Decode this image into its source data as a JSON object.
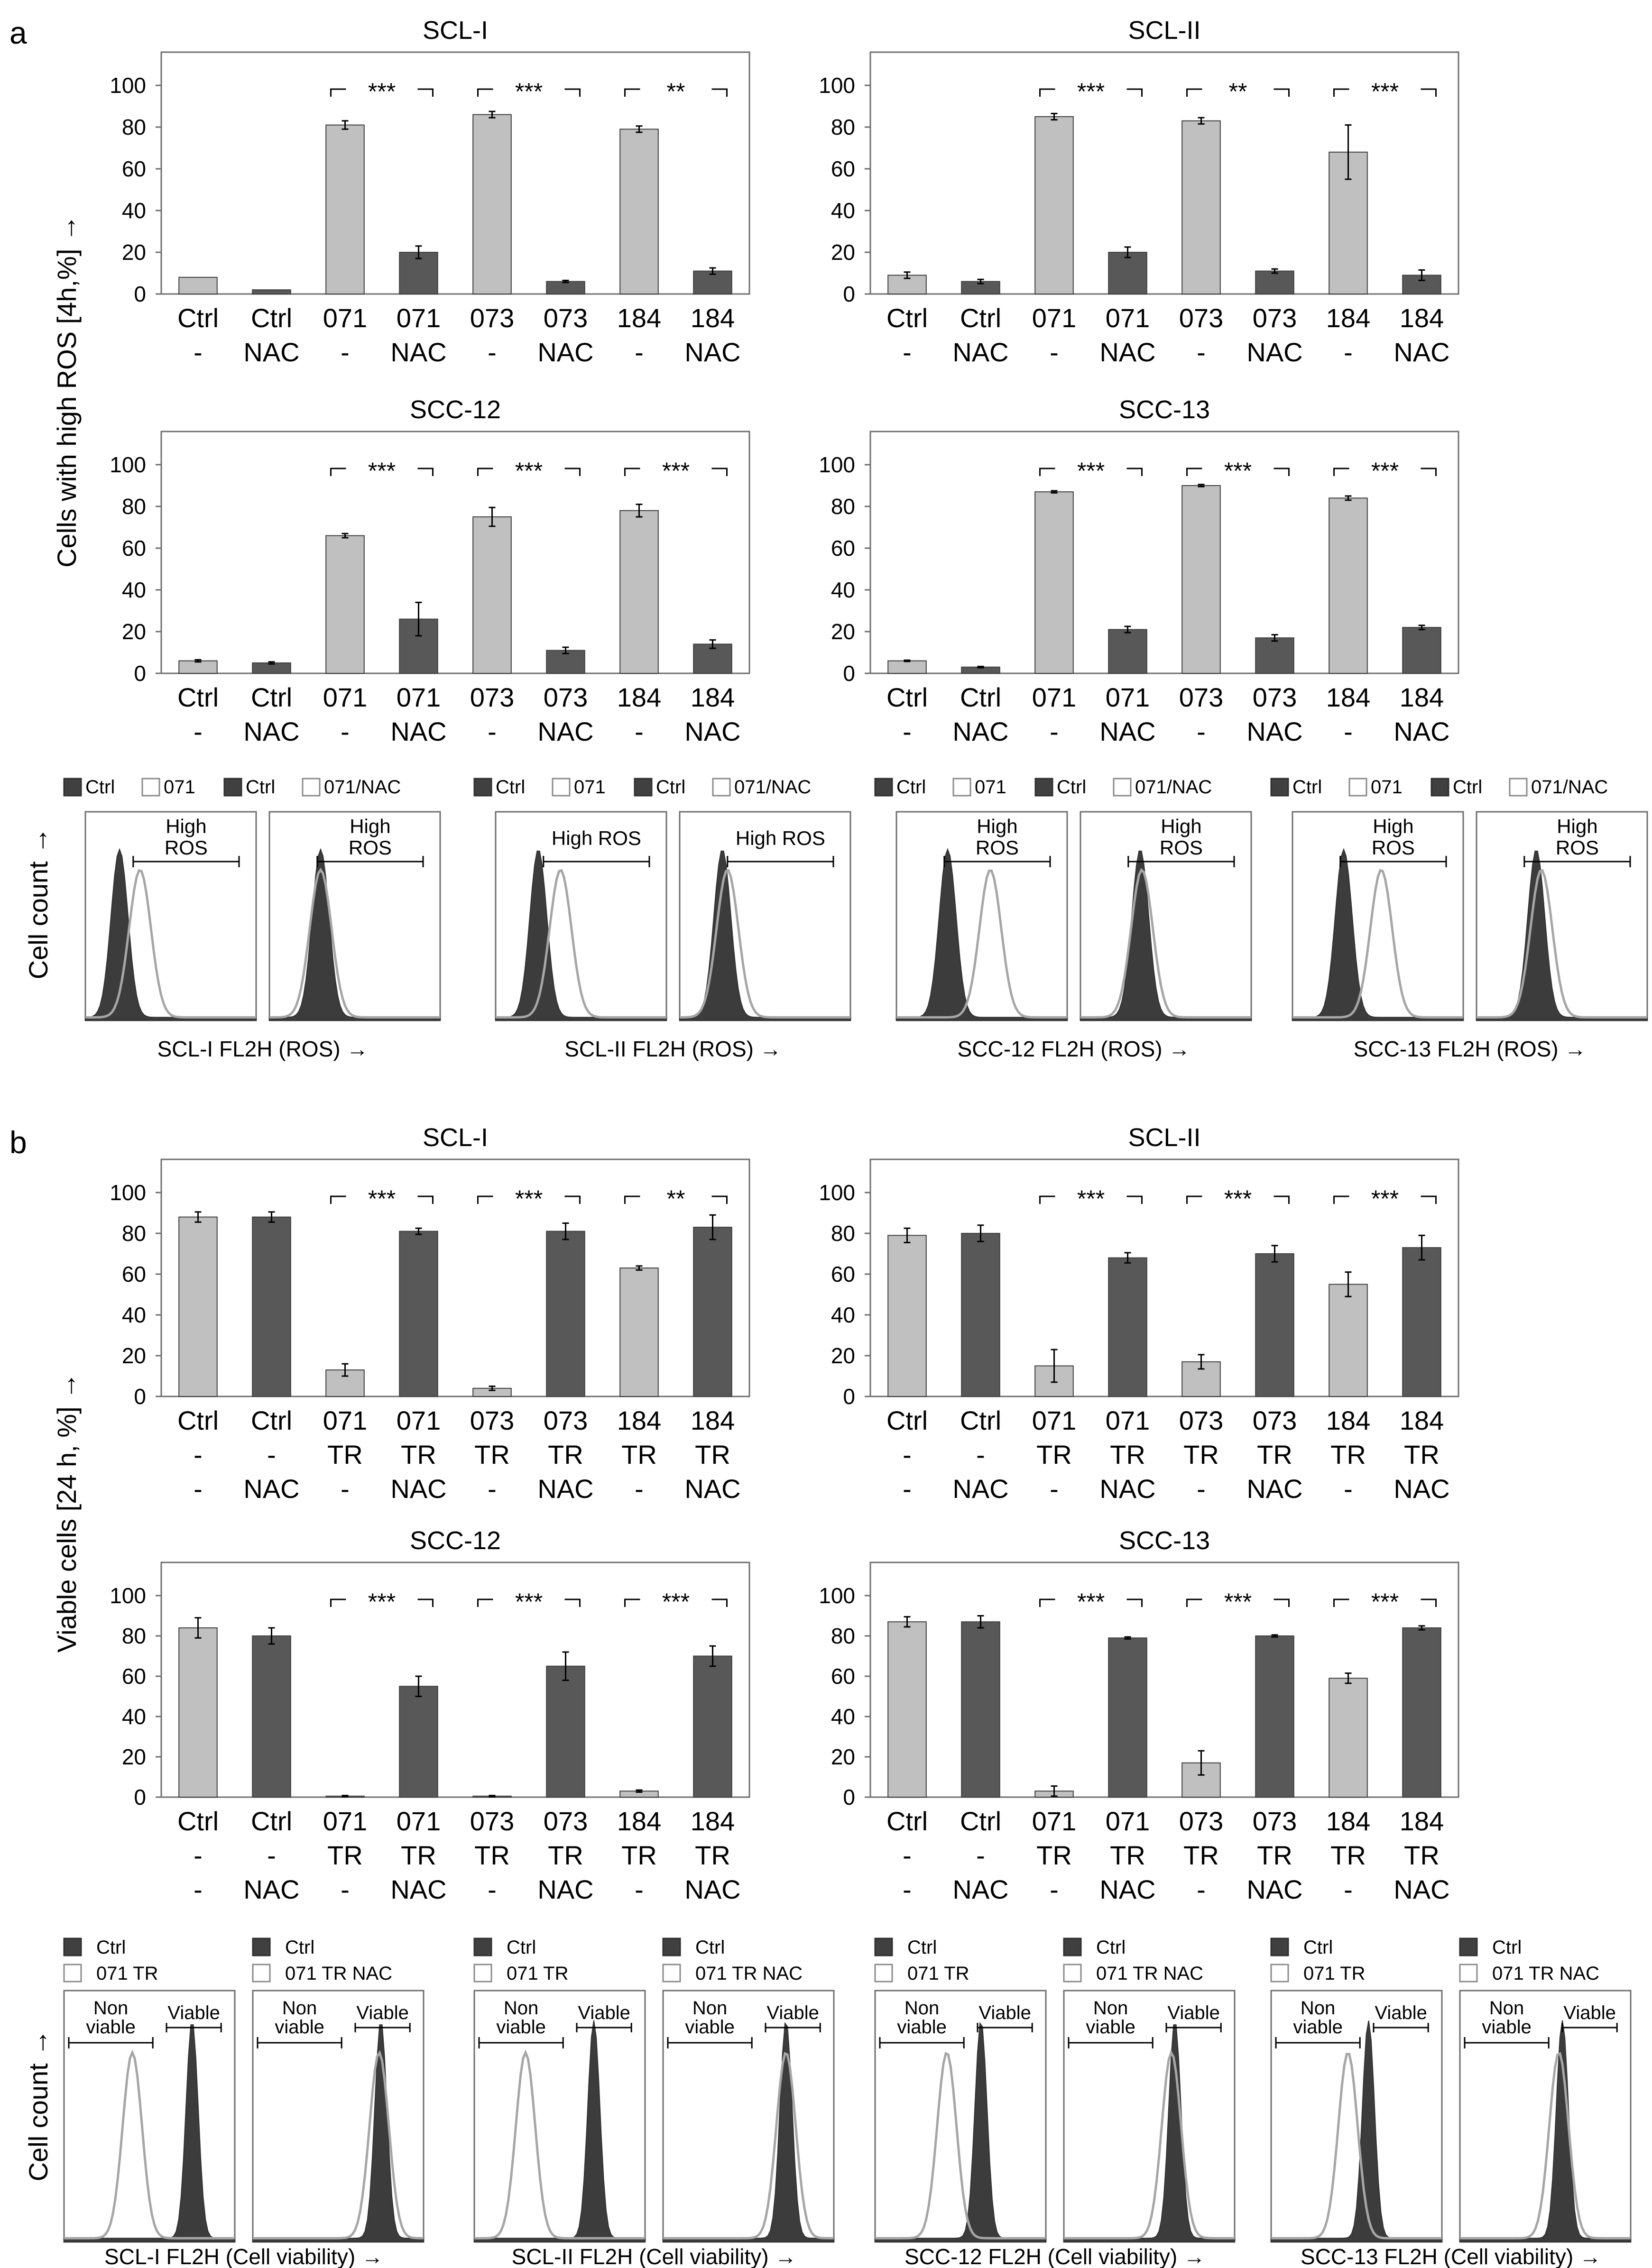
{
  "panel_letters": {
    "a": "a",
    "b": "b"
  },
  "colors": {
    "light": "#c0c0c0",
    "dark": "#585858",
    "frame": "#6e6e6e",
    "ctrl_fill": "#404040",
    "sample_line": "#a6a6a6"
  },
  "chart_data": [
    {
      "id": "a1",
      "type": "bar",
      "title": "SCL-I",
      "ylim": [
        0,
        100
      ],
      "yticks": [
        "0",
        "20",
        "40",
        "60",
        "80",
        "100"
      ],
      "ylabel": "Cells with high ROS [4h,%] →",
      "categories": [
        [
          "Ctrl",
          "-"
        ],
        [
          "Ctrl",
          "NAC"
        ],
        [
          "071",
          "-"
        ],
        [
          "071",
          "NAC"
        ],
        [
          "073",
          "-"
        ],
        [
          "073",
          "NAC"
        ],
        [
          "184",
          "-"
        ],
        [
          "184",
          "NAC"
        ]
      ],
      "values": [
        8,
        2,
        81,
        20,
        86,
        6,
        79,
        11
      ],
      "errors": [
        0,
        0,
        2,
        3,
        1.5,
        0.5,
        1.5,
        1.5
      ],
      "shade": [
        "light",
        "dark",
        "light",
        "dark",
        "light",
        "dark",
        "light",
        "dark"
      ],
      "brackets": [
        {
          "from": 2,
          "to": 3,
          "label": "***"
        },
        {
          "from": 4,
          "to": 5,
          "label": "***"
        },
        {
          "from": 6,
          "to": 7,
          "label": "**"
        }
      ]
    },
    {
      "id": "a2",
      "type": "bar",
      "title": "SCL-II",
      "ylim": [
        0,
        100
      ],
      "yticks": [
        "0",
        "20",
        "40",
        "60",
        "80",
        "100"
      ],
      "categories": [
        [
          "Ctrl",
          "-"
        ],
        [
          "Ctrl",
          "NAC"
        ],
        [
          "071",
          "-"
        ],
        [
          "071",
          "NAC"
        ],
        [
          "073",
          "-"
        ],
        [
          "073",
          "NAC"
        ],
        [
          "184",
          "-"
        ],
        [
          "184",
          "NAC"
        ]
      ],
      "values": [
        9,
        6,
        85,
        20,
        83,
        11,
        68,
        9
      ],
      "errors": [
        1.5,
        1,
        1.5,
        2.5,
        1.5,
        1,
        13,
        2.5
      ],
      "shade": [
        "light",
        "dark",
        "light",
        "dark",
        "light",
        "dark",
        "light",
        "dark"
      ],
      "brackets": [
        {
          "from": 2,
          "to": 3,
          "label": "***"
        },
        {
          "from": 4,
          "to": 5,
          "label": "**"
        },
        {
          "from": 6,
          "to": 7,
          "label": "***"
        }
      ]
    },
    {
      "id": "a3",
      "type": "bar",
      "title": "SCC-12",
      "ylim": [
        0,
        100
      ],
      "yticks": [
        "0",
        "20",
        "40",
        "60",
        "80",
        "100"
      ],
      "categories": [
        [
          "Ctrl",
          "-"
        ],
        [
          "Ctrl",
          "NAC"
        ],
        [
          "071",
          "-"
        ],
        [
          "071",
          "NAC"
        ],
        [
          "073",
          "-"
        ],
        [
          "073",
          "NAC"
        ],
        [
          "184",
          "-"
        ],
        [
          "184",
          "NAC"
        ]
      ],
      "values": [
        6,
        5,
        66,
        26,
        75,
        11,
        78,
        14
      ],
      "errors": [
        0.5,
        0.5,
        1,
        8,
        4.5,
        1.5,
        3,
        2
      ],
      "shade": [
        "light",
        "dark",
        "light",
        "dark",
        "light",
        "dark",
        "light",
        "dark"
      ],
      "brackets": [
        {
          "from": 2,
          "to": 3,
          "label": "***"
        },
        {
          "from": 4,
          "to": 5,
          "label": "***"
        },
        {
          "from": 6,
          "to": 7,
          "label": "***"
        }
      ]
    },
    {
      "id": "a4",
      "type": "bar",
      "title": "SCC-13",
      "ylim": [
        0,
        100
      ],
      "yticks": [
        "0",
        "20",
        "40",
        "60",
        "80",
        "100"
      ],
      "categories": [
        [
          "Ctrl",
          "-"
        ],
        [
          "Ctrl",
          "NAC"
        ],
        [
          "071",
          "-"
        ],
        [
          "071",
          "NAC"
        ],
        [
          "073",
          "-"
        ],
        [
          "073",
          "NAC"
        ],
        [
          "184",
          "-"
        ],
        [
          "184",
          "NAC"
        ]
      ],
      "values": [
        6,
        3,
        87,
        21,
        90,
        17,
        84,
        22
      ],
      "errors": [
        0.3,
        0.3,
        0.5,
        1.5,
        0.5,
        1.5,
        1,
        1
      ],
      "shade": [
        "light",
        "dark",
        "light",
        "dark",
        "light",
        "dark",
        "light",
        "dark"
      ],
      "brackets": [
        {
          "from": 2,
          "to": 3,
          "label": "***"
        },
        {
          "from": 4,
          "to": 5,
          "label": "***"
        },
        {
          "from": 6,
          "to": 7,
          "label": "***"
        }
      ]
    },
    {
      "id": "b1",
      "type": "bar",
      "title": "SCL-I",
      "ylim": [
        0,
        100
      ],
      "yticks": [
        "0",
        "20",
        "40",
        "60",
        "80",
        "100"
      ],
      "ylabel": "Viable cells [24 h, %] →",
      "categories": [
        [
          "Ctrl",
          "-",
          "-"
        ],
        [
          "Ctrl",
          "-",
          "NAC"
        ],
        [
          "071",
          "TR",
          "-"
        ],
        [
          "071",
          "TR",
          "NAC"
        ],
        [
          "073",
          "TR",
          "-"
        ],
        [
          "073",
          "TR",
          "NAC"
        ],
        [
          "184",
          "TR",
          "-"
        ],
        [
          "184",
          "TR",
          "NAC"
        ]
      ],
      "values": [
        88,
        88,
        13,
        81,
        4,
        81,
        63,
        83
      ],
      "errors": [
        2.5,
        2.5,
        3,
        1.5,
        1,
        4,
        1,
        6
      ],
      "shade": [
        "light",
        "dark",
        "light",
        "dark",
        "light",
        "dark",
        "light",
        "dark"
      ],
      "brackets": [
        {
          "from": 2,
          "to": 3,
          "label": "***"
        },
        {
          "from": 4,
          "to": 5,
          "label": "***"
        },
        {
          "from": 6,
          "to": 7,
          "label": "**"
        }
      ]
    },
    {
      "id": "b2",
      "type": "bar",
      "title": "SCL-II",
      "ylim": [
        0,
        100
      ],
      "yticks": [
        "0",
        "20",
        "40",
        "60",
        "80",
        "100"
      ],
      "categories": [
        [
          "Ctrl",
          "-",
          "-"
        ],
        [
          "Ctrl",
          "-",
          "NAC"
        ],
        [
          "071",
          "TR",
          "-"
        ],
        [
          "071",
          "TR",
          "NAC"
        ],
        [
          "073",
          "TR",
          "-"
        ],
        [
          "073",
          "TR",
          "NAC"
        ],
        [
          "184",
          "TR",
          "-"
        ],
        [
          "184",
          "TR",
          "NAC"
        ]
      ],
      "values": [
        79,
        80,
        15,
        68,
        17,
        70,
        55,
        73
      ],
      "errors": [
        3.5,
        4,
        8,
        2.5,
        3.5,
        4,
        6,
        6
      ],
      "shade": [
        "light",
        "dark",
        "light",
        "dark",
        "light",
        "dark",
        "light",
        "dark"
      ],
      "brackets": [
        {
          "from": 2,
          "to": 3,
          "label": "***"
        },
        {
          "from": 4,
          "to": 5,
          "label": "***"
        },
        {
          "from": 6,
          "to": 7,
          "label": "***"
        }
      ]
    },
    {
      "id": "b3",
      "type": "bar",
      "title": "SCC-12",
      "ylim": [
        0,
        100
      ],
      "yticks": [
        "0",
        "20",
        "40",
        "60",
        "80",
        "100"
      ],
      "categories": [
        [
          "Ctrl",
          "-",
          "-"
        ],
        [
          "Ctrl",
          "-",
          "NAC"
        ],
        [
          "071",
          "TR",
          "-"
        ],
        [
          "071",
          "TR",
          "NAC"
        ],
        [
          "073",
          "TR",
          "-"
        ],
        [
          "073",
          "TR",
          "NAC"
        ],
        [
          "184",
          "TR",
          "-"
        ],
        [
          "184",
          "TR",
          "NAC"
        ]
      ],
      "values": [
        84,
        80,
        0.5,
        55,
        0.5,
        65,
        3,
        70
      ],
      "errors": [
        5,
        4,
        0.3,
        5,
        0.3,
        7,
        0.5,
        5
      ],
      "shade": [
        "light",
        "dark",
        "light",
        "dark",
        "light",
        "dark",
        "light",
        "dark"
      ],
      "brackets": [
        {
          "from": 2,
          "to": 3,
          "label": "***"
        },
        {
          "from": 4,
          "to": 5,
          "label": "***"
        },
        {
          "from": 6,
          "to": 7,
          "label": "***"
        }
      ]
    },
    {
      "id": "b4",
      "type": "bar",
      "title": "SCC-13",
      "ylim": [
        0,
        100
      ],
      "yticks": [
        "0",
        "20",
        "40",
        "60",
        "80",
        "100"
      ],
      "categories": [
        [
          "Ctrl",
          "-",
          "-"
        ],
        [
          "Ctrl",
          "-",
          "NAC"
        ],
        [
          "071",
          "TR",
          "-"
        ],
        [
          "071",
          "TR",
          "NAC"
        ],
        [
          "073",
          "TR",
          "-"
        ],
        [
          "073",
          "TR",
          "NAC"
        ],
        [
          "184",
          "TR",
          "-"
        ],
        [
          "184",
          "TR",
          "NAC"
        ]
      ],
      "values": [
        87,
        87,
        3,
        79,
        17,
        80,
        59,
        84
      ],
      "errors": [
        2.5,
        3,
        2.5,
        0.5,
        6,
        0.5,
        2.5,
        1
      ],
      "shade": [
        "light",
        "dark",
        "light",
        "dark",
        "light",
        "dark",
        "light",
        "dark"
      ],
      "brackets": [
        {
          "from": 2,
          "to": 3,
          "label": "***"
        },
        {
          "from": 4,
          "to": 5,
          "label": "***"
        },
        {
          "from": 6,
          "to": 7,
          "label": "***"
        }
      ]
    }
  ],
  "flow_a": {
    "ylabel": "Cell count →",
    "groups": [
      {
        "xlabel": "SCL-I FL2H (ROS) →",
        "legend": [
          {
            "swatch": "dark",
            "label": "Ctrl"
          },
          {
            "swatch": "open",
            "label": "071"
          },
          {
            "swatch": "dark",
            "label": "Ctrl"
          },
          {
            "swatch": "open",
            "label": "071/NAC"
          }
        ],
        "boxes": [
          {
            "gate": "High ROS",
            "lines": [
              "High",
              "ROS"
            ],
            "ctrl_peak": 0.2,
            "sample_peak": 0.32
          },
          {
            "gate": "High ROS",
            "lines": [
              "High",
              "ROS"
            ],
            "ctrl_peak": 0.3,
            "sample_peak": 0.3
          }
        ]
      },
      {
        "xlabel": "SCL-II FL2H (ROS) →",
        "legend": [
          {
            "swatch": "dark",
            "label": "Ctrl"
          },
          {
            "swatch": "open",
            "label": "071"
          },
          {
            "swatch": "dark",
            "label": "Ctrl"
          },
          {
            "swatch": "open",
            "label": "071/NAC"
          }
        ],
        "boxes": [
          {
            "gate": "High ROS",
            "lines": [
              "High ROS"
            ],
            "ctrl_peak": 0.25,
            "sample_peak": 0.38
          },
          {
            "gate": "High ROS",
            "lines": [
              "High ROS"
            ],
            "ctrl_peak": 0.25,
            "sample_peak": 0.28
          }
        ]
      },
      {
        "xlabel": "SCC-12 FL2H (ROS) →",
        "legend": [
          {
            "swatch": "dark",
            "label": "Ctrl"
          },
          {
            "swatch": "open",
            "label": "071"
          },
          {
            "swatch": "dark",
            "label": "Ctrl"
          },
          {
            "swatch": "open",
            "label": "071/NAC"
          }
        ],
        "boxes": [
          {
            "gate": "High ROS",
            "lines": [
              "High",
              "ROS"
            ],
            "ctrl_peak": 0.3,
            "sample_peak": 0.55
          },
          {
            "gate": "High ROS",
            "lines": [
              "High",
              "ROS"
            ],
            "ctrl_peak": 0.35,
            "sample_peak": 0.36
          }
        ]
      },
      {
        "xlabel": "SCC-13 FL2H (ROS) →",
        "legend": [
          {
            "swatch": "dark",
            "label": "Ctrl"
          },
          {
            "swatch": "open",
            "label": "071"
          },
          {
            "swatch": "dark",
            "label": "Ctrl"
          },
          {
            "swatch": "open",
            "label": "071/NAC"
          }
        ],
        "boxes": [
          {
            "gate": "High ROS",
            "lines": [
              "High",
              "ROS"
            ],
            "ctrl_peak": 0.3,
            "sample_peak": 0.52
          },
          {
            "gate": "High ROS",
            "lines": [
              "High",
              "ROS"
            ],
            "ctrl_peak": 0.35,
            "sample_peak": 0.38
          }
        ]
      }
    ]
  },
  "flow_b": {
    "ylabel": "Cell count →",
    "groups": [
      {
        "xlabel": "SCL-I FL2H (Cell viability) →",
        "legend": [
          [
            "Ctrl",
            "071 TR"
          ],
          [
            "Ctrl",
            "071 TR NAC"
          ]
        ],
        "boxes": [
          {
            "nonviable": [
              "Non",
              "viable"
            ],
            "viable": "Viable",
            "ctrl_peak": 0.75,
            "sample_peak": 0.4
          },
          {
            "nonviable": [
              "Non",
              "viable"
            ],
            "viable": "Viable",
            "ctrl_peak": 0.75,
            "sample_peak": 0.74
          }
        ]
      },
      {
        "xlabel": "SCL-II FL2H (Cell viability) →",
        "legend": [
          [
            "Ctrl",
            "071 TR"
          ],
          [
            "Ctrl",
            "071 TR NAC"
          ]
        ],
        "boxes": [
          {
            "nonviable": [
              "Non",
              "viable"
            ],
            "viable": "Viable",
            "ctrl_peak": 0.7,
            "sample_peak": 0.3
          },
          {
            "nonviable": [
              "Non",
              "viable"
            ],
            "viable": "Viable",
            "ctrl_peak": 0.72,
            "sample_peak": 0.72
          }
        ]
      },
      {
        "xlabel": "SCC-12 FL2H (Cell viability) →",
        "legend": [
          [
            "Ctrl",
            "071 TR"
          ],
          [
            "Ctrl",
            "071 TR NAC"
          ]
        ],
        "boxes": [
          {
            "nonviable": [
              "Non",
              "viable"
            ],
            "viable": "Viable",
            "ctrl_peak": 0.62,
            "sample_peak": 0.42
          },
          {
            "nonviable": [
              "Non",
              "viable"
            ],
            "viable": "Viable",
            "ctrl_peak": 0.65,
            "sample_peak": 0.63
          }
        ]
      },
      {
        "xlabel": "SCC-13 FL2H (Cell viability) →",
        "legend": [
          [
            "Ctrl",
            "071 TR"
          ],
          [
            "Ctrl",
            "071 TR NAC"
          ]
        ],
        "boxes": [
          {
            "nonviable": [
              "Non",
              "viable"
            ],
            "viable": "Viable",
            "ctrl_peak": 0.57,
            "sample_peak": 0.45
          },
          {
            "nonviable": [
              "Non",
              "viable"
            ],
            "viable": "Viable",
            "ctrl_peak": 0.6,
            "sample_peak": 0.58
          }
        ]
      }
    ]
  }
}
